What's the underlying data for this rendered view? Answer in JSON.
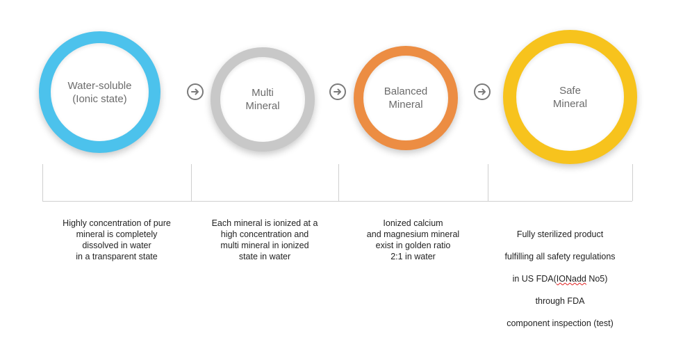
{
  "colors": {
    "blue": "#4cc2ec",
    "gray": "#c8c8c8",
    "orange": "#ec8d43",
    "yellow": "#f7c31d",
    "label_text": "#6b6b6b",
    "arrow": "#7a7a7a"
  },
  "steps": [
    {
      "title": "Water-soluble\n(Ionic state)",
      "color": "blue",
      "description": "Highly concentration of  pure\nmineral is completely\ndissolved in water\nin a transparent state"
    },
    {
      "title": "Multi\nMineral",
      "color": "gray",
      "description": "Each mineral is ionized at a\nhigh concentration and\nmulti mineral in ionized\nstate in water"
    },
    {
      "title": "Balanced\nMineral",
      "color": "orange",
      "description": "Ionized calcium\nand magnesium mineral\nexist in golden ratio\n2:1 in water"
    },
    {
      "title": "Safe\nMineral",
      "color": "yellow",
      "description_lines": [
        "Fully sterilized product",
        "fulfilling all safety regulations",
        "in  US FDA(",
        "IONadd",
        " No5)",
        "through FDA",
        "component  inspection (test)"
      ]
    }
  ],
  "arrows": [
    "arrow-right-circle-icon",
    "arrow-right-circle-icon",
    "arrow-right-circle-icon"
  ]
}
